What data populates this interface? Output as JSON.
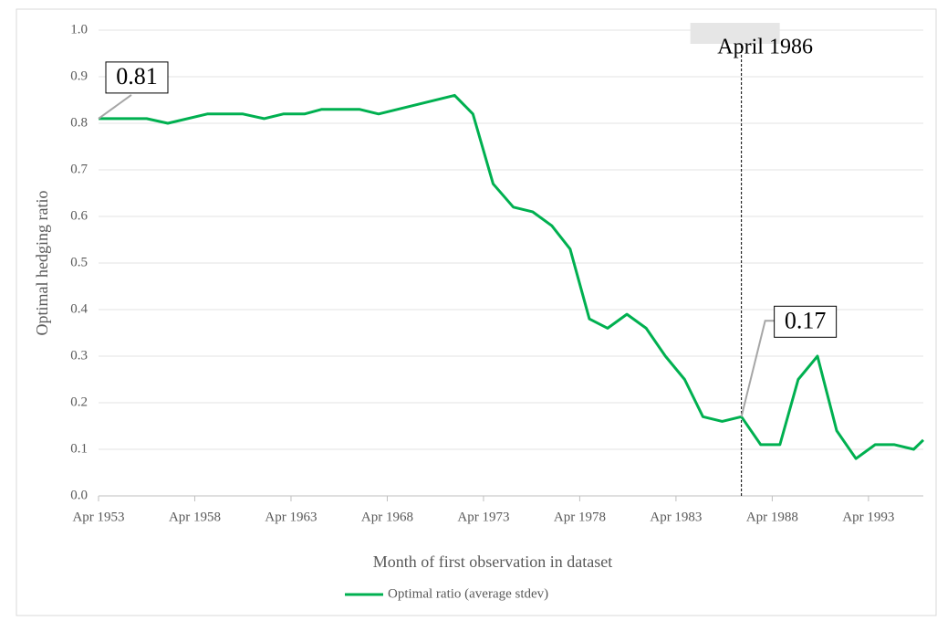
{
  "chart_data": {
    "type": "line",
    "x_label": "Month of first observation in dataset",
    "y_label": "Optimal hedging ratio",
    "x": [
      1953.25,
      1955.75,
      1956.85,
      1958.9,
      1960.75,
      1961.85,
      1962.85,
      1963.95,
      1964.85,
      1966.8,
      1967.8,
      1971.75,
      1972.7,
      1973.75,
      1974.8,
      1975.8,
      1976.8,
      1977.75,
      1978.75,
      1979.7,
      1980.7,
      1981.7,
      1982.7,
      1983.7,
      1984.65,
      1985.65,
      1986.65,
      1987.65,
      1988.65,
      1989.6,
      1990.6,
      1991.6,
      1992.6,
      1993.6,
      1994.6,
      1995.6,
      1996.1
    ],
    "series": [
      {
        "name": "Optimal ratio (average stdev)",
        "color": "#00b050",
        "values": [
          0.81,
          0.81,
          0.8,
          0.82,
          0.82,
          0.81,
          0.82,
          0.82,
          0.83,
          0.83,
          0.82,
          0.86,
          0.82,
          0.67,
          0.62,
          0.61,
          0.58,
          0.53,
          0.38,
          0.36,
          0.39,
          0.36,
          0.3,
          0.25,
          0.17,
          0.16,
          0.17,
          0.11,
          0.11,
          0.25,
          0.3,
          0.14,
          0.08,
          0.11,
          0.11,
          0.1,
          0.12
        ]
      }
    ],
    "xlim": [
      1953.25,
      1996.1
    ],
    "xticks": [
      {
        "value": 1953.25,
        "label": "Apr 1953"
      },
      {
        "value": 1958.25,
        "label": "Apr 1958"
      },
      {
        "value": 1963.25,
        "label": "Apr 1963"
      },
      {
        "value": 1968.25,
        "label": "Apr 1968"
      },
      {
        "value": 1973.25,
        "label": "Apr 1973"
      },
      {
        "value": 1978.25,
        "label": "Apr 1978"
      },
      {
        "value": 1983.25,
        "label": "Apr 1983"
      },
      {
        "value": 1988.25,
        "label": "Apr 1988"
      },
      {
        "value": 1993.25,
        "label": "Apr 1993"
      }
    ],
    "ylim": [
      0,
      1
    ],
    "yticks": [
      {
        "value": 0,
        "label": "0.0"
      },
      0.1,
      0.2,
      0.3,
      0.4,
      0.5,
      0.6,
      0.7,
      0.8,
      0.9,
      {
        "value": 1,
        "label": "1.0"
      }
    ],
    "grid": true,
    "vline": {
      "x": 1986.65,
      "label": "April 1986"
    },
    "point_labels": [
      0,
      26
    ]
  }
}
